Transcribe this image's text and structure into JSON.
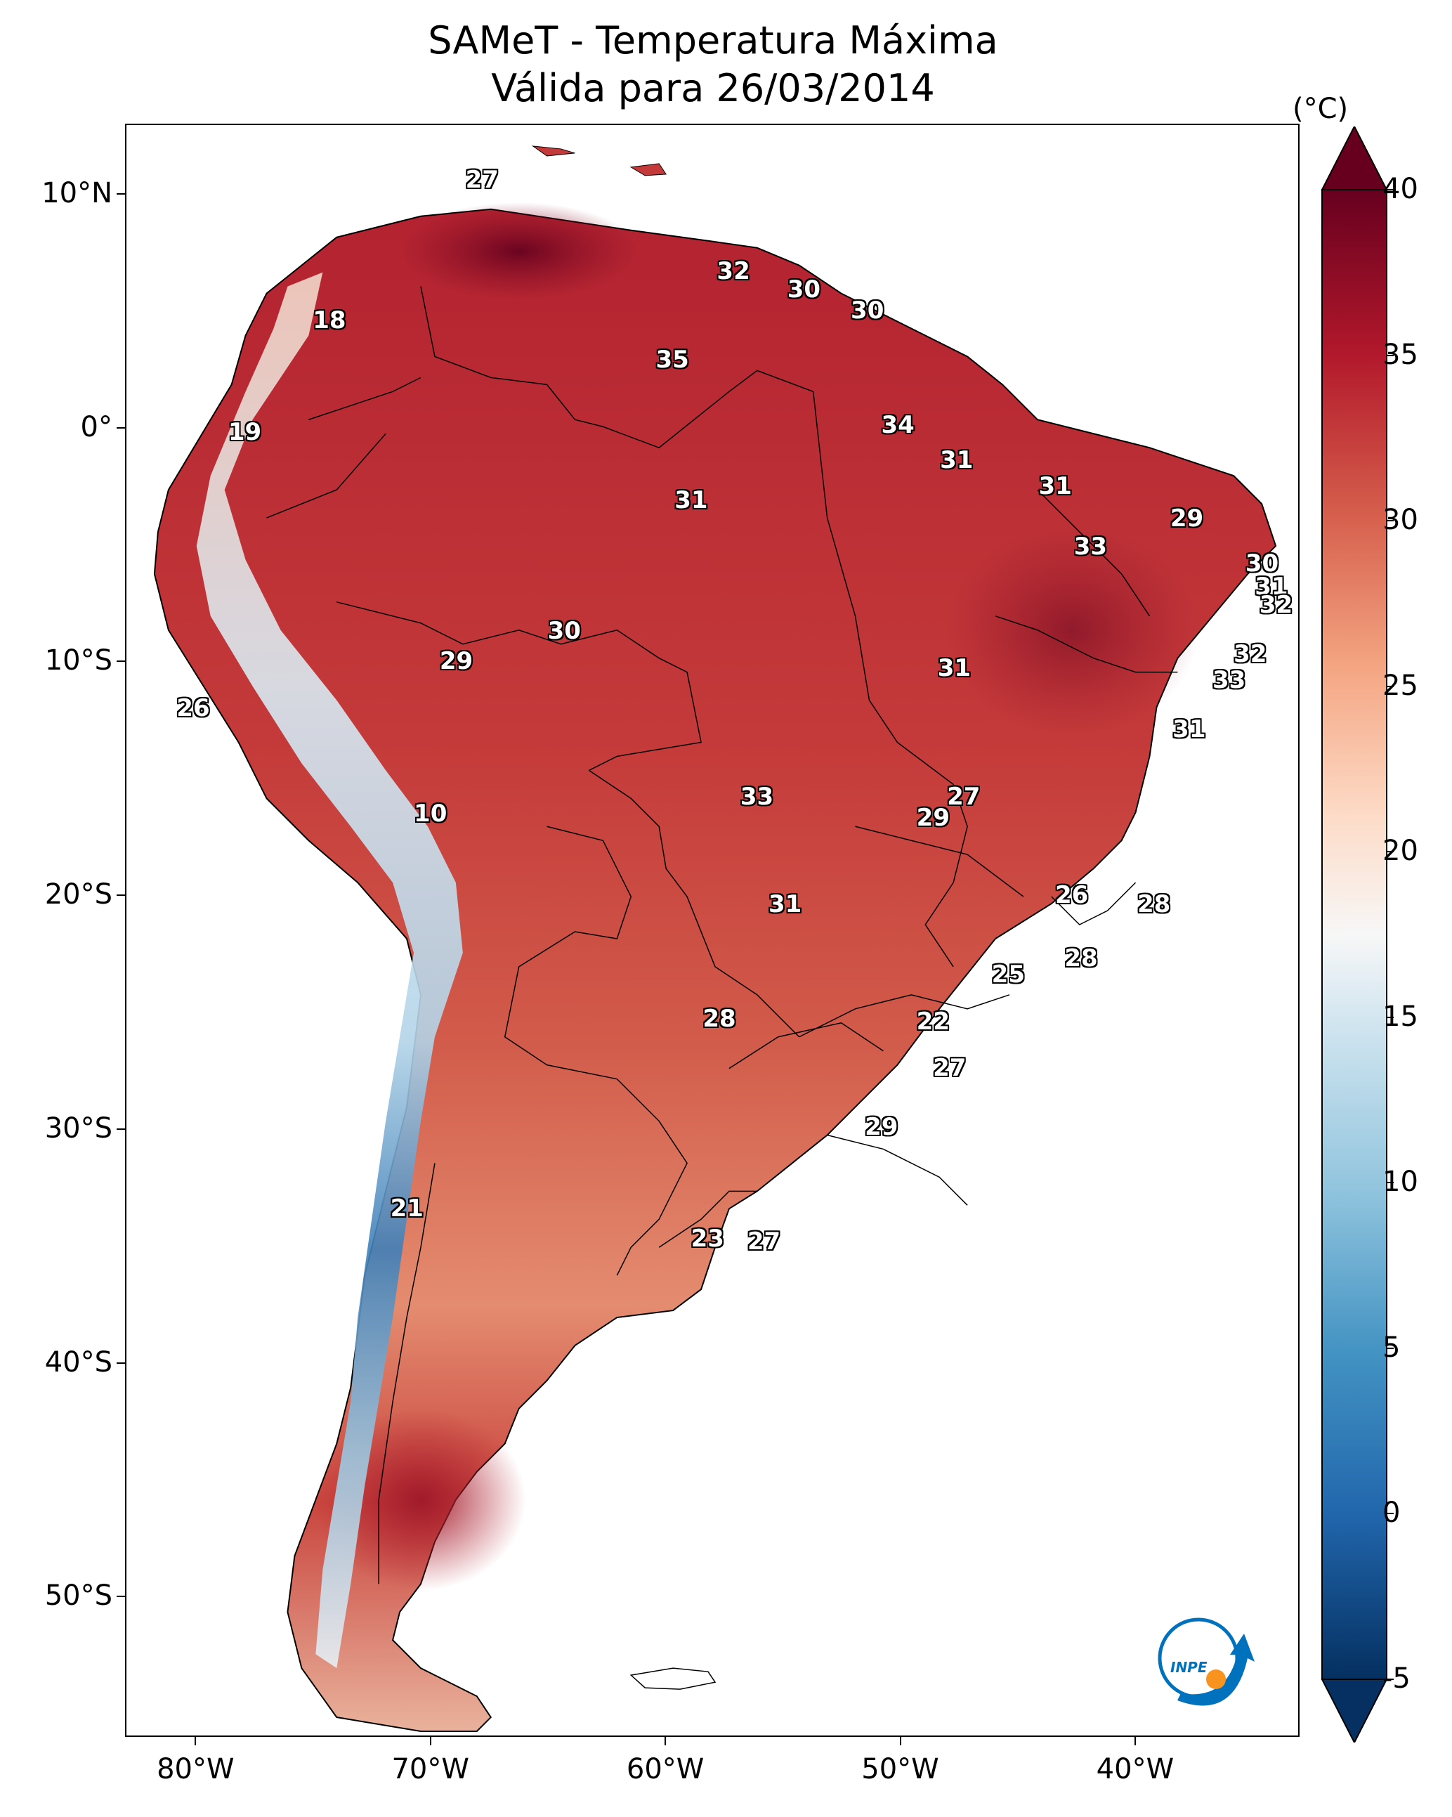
{
  "title": {
    "line1": "SAMeT - Temperatura Máxima",
    "line2": "Válida para 26/03/2014"
  },
  "map": {
    "variable": "temperatura máxima",
    "extent": {
      "lon_min": -83,
      "lon_max": -33,
      "lat_min": -56,
      "lat_max": 13
    },
    "lat_ticks": [
      {
        "lat": 10,
        "label": "10°N"
      },
      {
        "lat": 0,
        "label": "0°"
      },
      {
        "lat": -10,
        "label": "10°S"
      },
      {
        "lat": -20,
        "label": "20°S"
      },
      {
        "lat": -30,
        "label": "30°S"
      },
      {
        "lat": -40,
        "label": "40°S"
      },
      {
        "lat": -50,
        "label": "50°S"
      }
    ],
    "lon_ticks": [
      {
        "lon": -80,
        "label": "80°W"
      },
      {
        "lon": -70,
        "label": "70°W"
      },
      {
        "lon": -60,
        "label": "60°W"
      },
      {
        "lon": -50,
        "label": "50°W"
      },
      {
        "lon": -40,
        "label": "40°W"
      }
    ],
    "value_labels": [
      {
        "value": "27",
        "lon": -67.8,
        "lat": 10.6
      },
      {
        "value": "18",
        "lon": -74.3,
        "lat": 4.6
      },
      {
        "value": "32",
        "lon": -57.1,
        "lat": 6.7
      },
      {
        "value": "30",
        "lon": -54.1,
        "lat": 5.9
      },
      {
        "value": "30",
        "lon": -51.4,
        "lat": 5.0
      },
      {
        "value": "35",
        "lon": -59.7,
        "lat": 2.9
      },
      {
        "value": "19",
        "lon": -77.9,
        "lat": -0.2
      },
      {
        "value": "34",
        "lon": -50.1,
        "lat": 0.1
      },
      {
        "value": "31",
        "lon": -47.6,
        "lat": -1.4
      },
      {
        "value": "31",
        "lon": -43.4,
        "lat": -2.5
      },
      {
        "value": "31",
        "lon": -58.9,
        "lat": -3.1
      },
      {
        "value": "29",
        "lon": -37.8,
        "lat": -3.9
      },
      {
        "value": "33",
        "lon": -41.9,
        "lat": -5.1
      },
      {
        "value": "30",
        "lon": -34.6,
        "lat": -5.8
      },
      {
        "value": "31",
        "lon": -34.2,
        "lat": -6.8
      },
      {
        "value": "32",
        "lon": -34.0,
        "lat": -7.6
      },
      {
        "value": "30",
        "lon": -64.3,
        "lat": -8.7
      },
      {
        "value": "29",
        "lon": -68.9,
        "lat": -10.0
      },
      {
        "value": "31",
        "lon": -47.7,
        "lat": -10.3
      },
      {
        "value": "32",
        "lon": -35.1,
        "lat": -9.7
      },
      {
        "value": "33",
        "lon": -36.0,
        "lat": -10.8
      },
      {
        "value": "26",
        "lon": -80.1,
        "lat": -12.0
      },
      {
        "value": "31",
        "lon": -37.7,
        "lat": -12.9
      },
      {
        "value": "27",
        "lon": -47.3,
        "lat": -15.8
      },
      {
        "value": "33",
        "lon": -56.1,
        "lat": -15.8
      },
      {
        "value": "29",
        "lon": -48.6,
        "lat": -16.7
      },
      {
        "value": "10",
        "lon": -70.0,
        "lat": -16.5
      },
      {
        "value": "26",
        "lon": -42.7,
        "lat": -20.0
      },
      {
        "value": "31",
        "lon": -54.9,
        "lat": -20.4
      },
      {
        "value": "28",
        "lon": -39.2,
        "lat": -20.4
      },
      {
        "value": "28",
        "lon": -42.3,
        "lat": -22.7
      },
      {
        "value": "25",
        "lon": -45.4,
        "lat": -23.4
      },
      {
        "value": "22",
        "lon": -48.6,
        "lat": -25.4
      },
      {
        "value": "28",
        "lon": -57.7,
        "lat": -25.3
      },
      {
        "value": "27",
        "lon": -47.9,
        "lat": -27.4
      },
      {
        "value": "29",
        "lon": -50.8,
        "lat": -29.9
      },
      {
        "value": "21",
        "lon": -71.0,
        "lat": -33.4
      },
      {
        "value": "23",
        "lon": -58.2,
        "lat": -34.7
      },
      {
        "value": "27",
        "lon": -55.8,
        "lat": -34.8
      }
    ]
  },
  "colorbar": {
    "unit": "(°C)",
    "min": -5,
    "max": 40,
    "ticks": [
      "-5",
      "0",
      "5",
      "10",
      "15",
      "20",
      "25",
      "30",
      "35",
      "40"
    ],
    "colors": [
      "#053061",
      "#2166ac",
      "#4393c3",
      "#92c5de",
      "#d1e5f0",
      "#f7f7f7",
      "#fddbc7",
      "#f4a582",
      "#d6604d",
      "#b2182b",
      "#67001f"
    ]
  },
  "logo": {
    "text": "INPE",
    "colors": {
      "blue": "#0071bc",
      "orange": "#f7931e"
    }
  }
}
